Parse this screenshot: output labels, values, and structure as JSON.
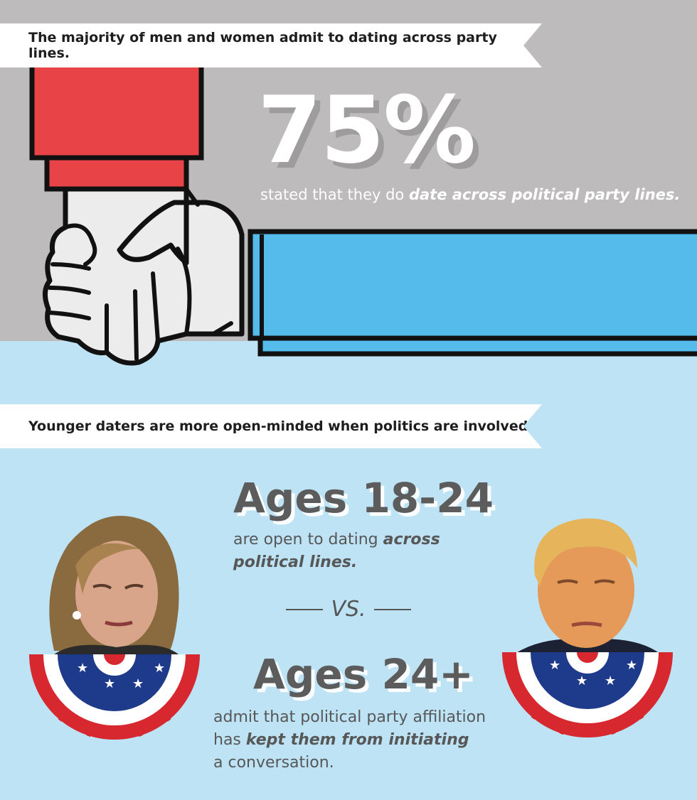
{
  "section1": {
    "heading": "The majority of men and women admit to dating across party lines.",
    "stat": "75%",
    "stat_text_plain": "stated that they do",
    "stat_text_bold": "date across political party lines.",
    "colors": {
      "red_sleeve": "#e84447",
      "blue_sleeve": "#54bbea",
      "background": "#bdbbbc"
    }
  },
  "section2": {
    "heading": "Younger daters are more open-minded when politics are involved.",
    "group1": {
      "label": "Ages 18-24",
      "text_plain": "are open to dating",
      "text_bold": "across political lines."
    },
    "vs": "VS.",
    "group2": {
      "label": "Ages 24+",
      "text_plain_1": "admit that political party affiliation has",
      "text_bold": "kept them from initiating",
      "text_plain_2": "a conversation."
    },
    "colors": {
      "background": "#bde3f5",
      "bunting_red": "#d7282f",
      "bunting_blue": "#1e3a8a"
    }
  }
}
